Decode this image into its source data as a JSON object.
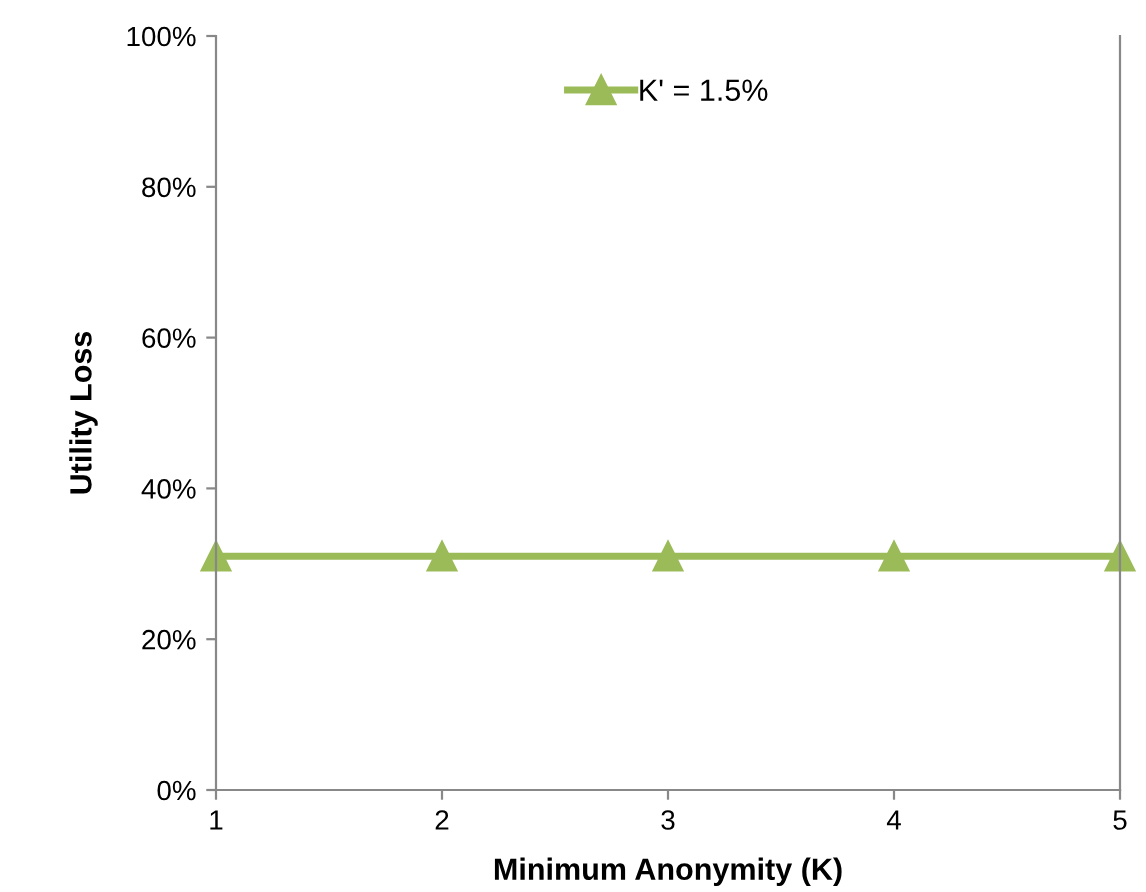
{
  "chart_data": {
    "type": "line",
    "xlabel": "Minimum Anonymity (K)",
    "ylabel": "Utility Loss",
    "x": [
      1,
      2,
      3,
      4,
      5
    ],
    "series": [
      {
        "name": "K' = 1.5%",
        "color": "#9bbb59",
        "values": [
          31,
          31,
          31,
          31,
          31
        ]
      }
    ],
    "xlim": [
      1,
      5
    ],
    "xticks": [
      1,
      2,
      3,
      4,
      5
    ],
    "ylim": [
      0,
      100
    ],
    "yticks": [
      {
        "value": 0,
        "label": "0%"
      },
      {
        "value": 20,
        "label": "20%"
      },
      {
        "value": 40,
        "label": "40%"
      },
      {
        "value": 60,
        "label": "60%"
      },
      {
        "value": 80,
        "label": "80%"
      },
      {
        "value": 100,
        "label": "100%"
      }
    ],
    "grid": false,
    "legend": "top",
    "marker": "triangle",
    "line_style": "solid"
  }
}
